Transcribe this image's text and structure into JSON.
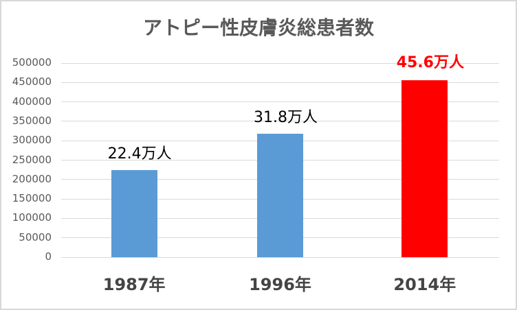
{
  "chart_data": {
    "type": "bar",
    "title": "アトピー性皮膚炎総患者数",
    "categories": [
      "1987年",
      "1996年",
      "2014年"
    ],
    "values": [
      224000,
      318000,
      456000
    ],
    "data_labels": [
      "22.4万人",
      "31.8万人",
      "45.6万人"
    ],
    "bar_colors": [
      "#5B9BD5",
      "#5B9BD5",
      "#FF0000"
    ],
    "data_label_colors": [
      "#000000",
      "#000000",
      "#FF0000"
    ],
    "ylabel": "",
    "xlabel": "",
    "ylim": [
      0,
      500000
    ],
    "ytick_step": 50000,
    "grid": true,
    "gridline_color": "#D9D9D9",
    "legend": "none"
  }
}
